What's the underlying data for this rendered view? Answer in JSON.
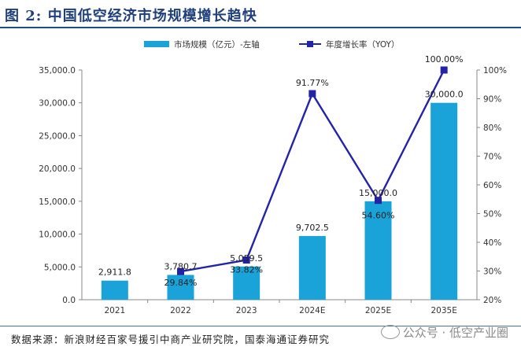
{
  "figure": {
    "title": "图 2: 中国低空经济市场规模增长趋快",
    "source": "数据来源：新浪财经百家号援引中商产业研究院，国泰海通证券研究",
    "watermark": "公众号 · 低空产业圈"
  },
  "chart_data": {
    "type": "bar+line",
    "categories": [
      "2021",
      "2022",
      "2023",
      "2024E",
      "2025E",
      "2035E"
    ],
    "series": [
      {
        "name": "市场规模（亿元）-左轴",
        "type": "bar",
        "axis": "left",
        "color": "#1aa3d9",
        "values": [
          2911.8,
          3780.7,
          5059.5,
          9702.5,
          15000.0,
          30000.0
        ],
        "labels": [
          "2,911.8",
          "3,780.7",
          "5,059.5",
          "9,702.5",
          "15,000.0",
          "30,000.0"
        ]
      },
      {
        "name": "年度增长率（YOY）",
        "type": "line",
        "axis": "right",
        "color": "#2323a8",
        "values": [
          null,
          29.84,
          33.82,
          91.77,
          54.6,
          100.0
        ],
        "labels": [
          "",
          "29.84%",
          "33.82%",
          "91.77%",
          "54.60%",
          "100.00%"
        ]
      }
    ],
    "y_left": {
      "range": [
        0,
        35000
      ],
      "ticks": [
        0,
        5000,
        10000,
        15000,
        20000,
        25000,
        30000,
        35000
      ],
      "tick_labels": [
        "0.0",
        "5,000.0",
        "10,000.0",
        "15,000.0",
        "20,000.0",
        "25,000.0",
        "30,000.0",
        "35,000.0"
      ]
    },
    "y_right": {
      "range": [
        20,
        100
      ],
      "ticks": [
        20,
        30,
        40,
        50,
        60,
        70,
        80,
        90,
        100
      ],
      "tick_labels": [
        "20%",
        "30%",
        "40%",
        "50%",
        "60%",
        "70%",
        "80%",
        "90%",
        "100%"
      ]
    },
    "legend_position": "top-center",
    "grid": false
  }
}
